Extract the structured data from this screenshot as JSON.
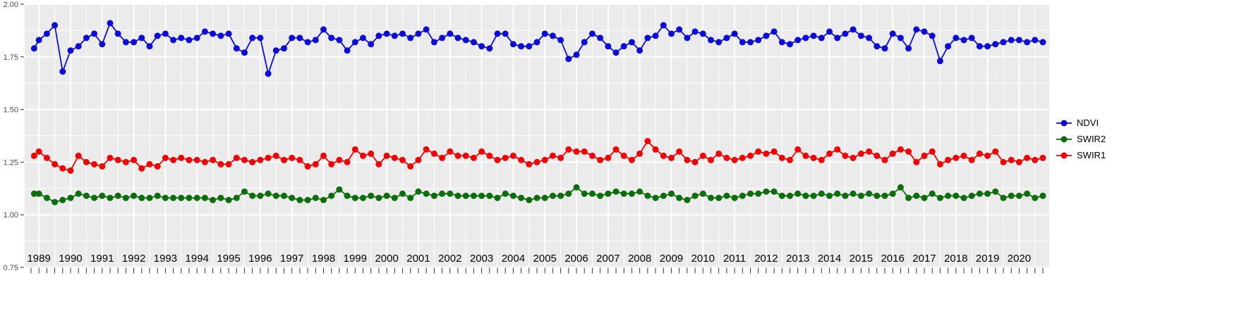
{
  "figure": {
    "background": "#ffffff",
    "panel_background": "#ebebeb",
    "grid_color": "#ffffff",
    "tick_color": "#333333",
    "y_label_color": "#4d4d4d",
    "x_label_color": "#000000"
  },
  "axes": {
    "y_tick_labels": [
      "2.00",
      "1.75",
      "1.50",
      "1.25",
      "1.00",
      "0.75"
    ],
    "y_tick_values": [
      2.0,
      1.75,
      1.5,
      1.25,
      1.0,
      0.75
    ],
    "y_minor_values": [
      1.875,
      1.625,
      1.375,
      1.125,
      0.875
    ],
    "x_tick_years": [
      1989,
      1990,
      1991,
      1992,
      1993,
      1994,
      1995,
      1996,
      1997,
      1998,
      1999,
      2000,
      2001,
      2002,
      2003,
      2004,
      2005,
      2006,
      2007,
      2008,
      2009,
      2010,
      2011,
      2012,
      2013,
      2014,
      2015,
      2016,
      2017,
      2018,
      2019,
      2020
    ],
    "x_range": [
      1988.55,
      2020.95
    ],
    "y_range": [
      0.75,
      2.0
    ],
    "minor_tick_step": 0.25
  },
  "legend": {
    "position": "right",
    "items": [
      {
        "label": "NDVI",
        "color": "#0c0cd8"
      },
      {
        "label": "SWIR2",
        "color": "#0b6e0b"
      },
      {
        "label": "SWIR1",
        "color": "#f50000"
      }
    ]
  },
  "chart_data": {
    "type": "line",
    "title": "",
    "xlabel": "",
    "ylabel": "",
    "ylim": [
      0.75,
      2.0
    ],
    "xlim": [
      1988.55,
      2020.95
    ],
    "grid": true,
    "legend_position": "right",
    "marker_radius": 4.5,
    "line_width": 1.8,
    "x": [
      1988.85,
      1989,
      1989.25,
      1989.5,
      1989.75,
      1990,
      1990.25,
      1990.5,
      1990.75,
      1991,
      1991.25,
      1991.5,
      1991.75,
      1992,
      1992.25,
      1992.5,
      1992.75,
      1993,
      1993.25,
      1993.5,
      1993.75,
      1994,
      1994.25,
      1994.5,
      1994.75,
      1995,
      1995.25,
      1995.5,
      1995.75,
      1996,
      1996.25,
      1996.5,
      1996.75,
      1997,
      1997.25,
      1997.5,
      1997.75,
      1998,
      1998.25,
      1998.5,
      1998.75,
      1999,
      1999.25,
      1999.5,
      1999.75,
      2000,
      2000.25,
      2000.5,
      2000.75,
      2001,
      2001.25,
      2001.5,
      2001.75,
      2002,
      2002.25,
      2002.5,
      2002.75,
      2003,
      2003.25,
      2003.5,
      2003.75,
      2004,
      2004.25,
      2004.5,
      2004.75,
      2005,
      2005.25,
      2005.5,
      2005.75,
      2006,
      2006.25,
      2006.5,
      2006.75,
      2007,
      2007.25,
      2007.5,
      2007.75,
      2008,
      2008.25,
      2008.5,
      2008.75,
      2009,
      2009.25,
      2009.5,
      2009.75,
      2010,
      2010.25,
      2010.5,
      2010.75,
      2011,
      2011.25,
      2011.5,
      2011.75,
      2012,
      2012.25,
      2012.5,
      2012.75,
      2013,
      2013.25,
      2013.5,
      2013.75,
      2014,
      2014.25,
      2014.5,
      2014.75,
      2015,
      2015.25,
      2015.5,
      2015.75,
      2016,
      2016.25,
      2016.5,
      2016.75,
      2017,
      2017.25,
      2017.5,
      2017.75,
      2018,
      2018.25,
      2018.5,
      2018.75,
      2019,
      2019.25,
      2019.5,
      2019.75,
      2020,
      2020.25,
      2020.5,
      2020.75
    ],
    "series": [
      {
        "name": "NDVI",
        "color": "#0c0cd8",
        "values": [
          1.79,
          1.83,
          1.86,
          1.9,
          1.68,
          1.78,
          1.8,
          1.84,
          1.86,
          1.81,
          1.91,
          1.86,
          1.82,
          1.82,
          1.84,
          1.8,
          1.85,
          1.86,
          1.83,
          1.84,
          1.83,
          1.84,
          1.87,
          1.86,
          1.85,
          1.86,
          1.79,
          1.77,
          1.84,
          1.84,
          1.67,
          1.78,
          1.79,
          1.84,
          1.84,
          1.82,
          1.83,
          1.88,
          1.84,
          1.83,
          1.78,
          1.82,
          1.84,
          1.81,
          1.85,
          1.86,
          1.85,
          1.86,
          1.84,
          1.86,
          1.88,
          1.82,
          1.84,
          1.86,
          1.84,
          1.83,
          1.82,
          1.8,
          1.79,
          1.86,
          1.86,
          1.81,
          1.8,
          1.8,
          1.82,
          1.86,
          1.85,
          1.83,
          1.74,
          1.76,
          1.82,
          1.86,
          1.84,
          1.8,
          1.77,
          1.8,
          1.82,
          1.78,
          1.84,
          1.85,
          1.9,
          1.86,
          1.88,
          1.84,
          1.87,
          1.86,
          1.83,
          1.82,
          1.84,
          1.86,
          1.82,
          1.82,
          1.83,
          1.85,
          1.87,
          1.82,
          1.81,
          1.83,
          1.84,
          1.85,
          1.84,
          1.87,
          1.84,
          1.86,
          1.88,
          1.85,
          1.84,
          1.8,
          1.79,
          1.86,
          1.84,
          1.79,
          1.88,
          1.87,
          1.85,
          1.73,
          1.8,
          1.84,
          1.83,
          1.84,
          1.8,
          1.8,
          1.81,
          1.82,
          1.83,
          1.83,
          1.82,
          1.83,
          1.82
        ]
      },
      {
        "name": "SWIR2",
        "color": "#0b6e0b",
        "values": [
          1.1,
          1.1,
          1.08,
          1.06,
          1.07,
          1.08,
          1.1,
          1.09,
          1.08,
          1.09,
          1.08,
          1.09,
          1.08,
          1.09,
          1.08,
          1.08,
          1.09,
          1.08,
          1.08,
          1.08,
          1.08,
          1.08,
          1.08,
          1.07,
          1.08,
          1.07,
          1.08,
          1.11,
          1.09,
          1.09,
          1.1,
          1.09,
          1.09,
          1.08,
          1.07,
          1.07,
          1.08,
          1.07,
          1.09,
          1.12,
          1.09,
          1.08,
          1.08,
          1.09,
          1.08,
          1.09,
          1.08,
          1.1,
          1.08,
          1.11,
          1.1,
          1.09,
          1.1,
          1.1,
          1.09,
          1.09,
          1.09,
          1.09,
          1.09,
          1.08,
          1.1,
          1.09,
          1.08,
          1.07,
          1.08,
          1.08,
          1.09,
          1.09,
          1.1,
          1.13,
          1.1,
          1.1,
          1.09,
          1.1,
          1.11,
          1.1,
          1.1,
          1.11,
          1.09,
          1.08,
          1.09,
          1.1,
          1.08,
          1.07,
          1.09,
          1.1,
          1.08,
          1.08,
          1.09,
          1.08,
          1.09,
          1.1,
          1.1,
          1.11,
          1.11,
          1.09,
          1.09,
          1.1,
          1.09,
          1.09,
          1.1,
          1.09,
          1.1,
          1.09,
          1.1,
          1.09,
          1.1,
          1.09,
          1.09,
          1.1,
          1.13,
          1.08,
          1.09,
          1.08,
          1.1,
          1.08,
          1.09,
          1.09,
          1.08,
          1.09,
          1.1,
          1.1,
          1.11,
          1.08,
          1.09,
          1.09,
          1.1,
          1.08,
          1.09
        ]
      },
      {
        "name": "SWIR1",
        "color": "#f50000",
        "values": [
          1.28,
          1.3,
          1.27,
          1.24,
          1.22,
          1.21,
          1.28,
          1.25,
          1.24,
          1.23,
          1.27,
          1.26,
          1.25,
          1.26,
          1.22,
          1.24,
          1.23,
          1.27,
          1.26,
          1.27,
          1.26,
          1.26,
          1.25,
          1.26,
          1.24,
          1.24,
          1.27,
          1.26,
          1.25,
          1.26,
          1.27,
          1.28,
          1.26,
          1.27,
          1.26,
          1.23,
          1.24,
          1.28,
          1.24,
          1.26,
          1.25,
          1.31,
          1.28,
          1.29,
          1.24,
          1.28,
          1.27,
          1.26,
          1.23,
          1.26,
          1.31,
          1.29,
          1.27,
          1.3,
          1.28,
          1.28,
          1.27,
          1.3,
          1.28,
          1.26,
          1.27,
          1.28,
          1.26,
          1.24,
          1.25,
          1.26,
          1.28,
          1.27,
          1.31,
          1.3,
          1.3,
          1.28,
          1.26,
          1.27,
          1.31,
          1.28,
          1.26,
          1.29,
          1.35,
          1.31,
          1.28,
          1.27,
          1.3,
          1.26,
          1.25,
          1.28,
          1.26,
          1.29,
          1.27,
          1.26,
          1.27,
          1.28,
          1.3,
          1.29,
          1.3,
          1.27,
          1.26,
          1.31,
          1.28,
          1.27,
          1.26,
          1.29,
          1.31,
          1.28,
          1.27,
          1.29,
          1.3,
          1.28,
          1.26,
          1.29,
          1.31,
          1.3,
          1.25,
          1.28,
          1.3,
          1.24,
          1.26,
          1.27,
          1.28,
          1.26,
          1.29,
          1.28,
          1.3,
          1.25,
          1.26,
          1.25,
          1.27,
          1.26,
          1.27
        ]
      }
    ]
  }
}
